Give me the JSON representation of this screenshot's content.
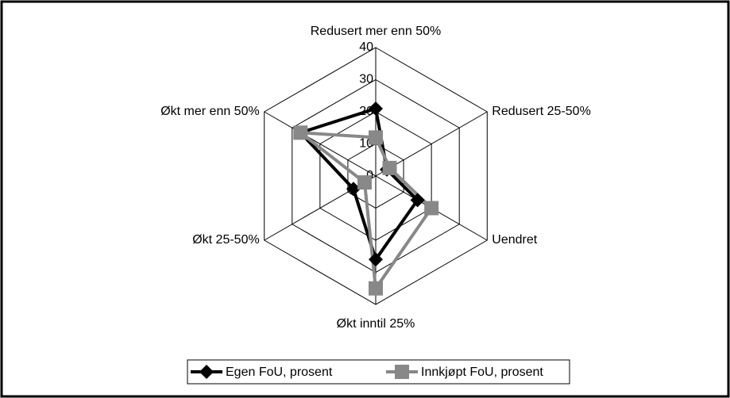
{
  "chart_data": {
    "type": "radar",
    "categories": [
      "Redusert mer enn 50%",
      "Redusert 25-50%",
      "Uendret",
      "Økt inntil 25%",
      "Økt 25-50%",
      "Økt mer enn 50%"
    ],
    "series": [
      {
        "name": "Egen FoU, prosent",
        "color": "#000000",
        "marker": "diamond",
        "values": [
          21,
          4,
          15,
          26,
          8,
          27
        ]
      },
      {
        "name": "Innkjøpt FoU, prosent",
        "color": "#888888",
        "marker": "square",
        "values": [
          12,
          5,
          20,
          35,
          4,
          27
        ]
      }
    ],
    "ylim": [
      0,
      40
    ],
    "yticks": [
      0,
      10,
      20,
      30,
      40
    ],
    "grid": true,
    "legend": "bottom"
  }
}
